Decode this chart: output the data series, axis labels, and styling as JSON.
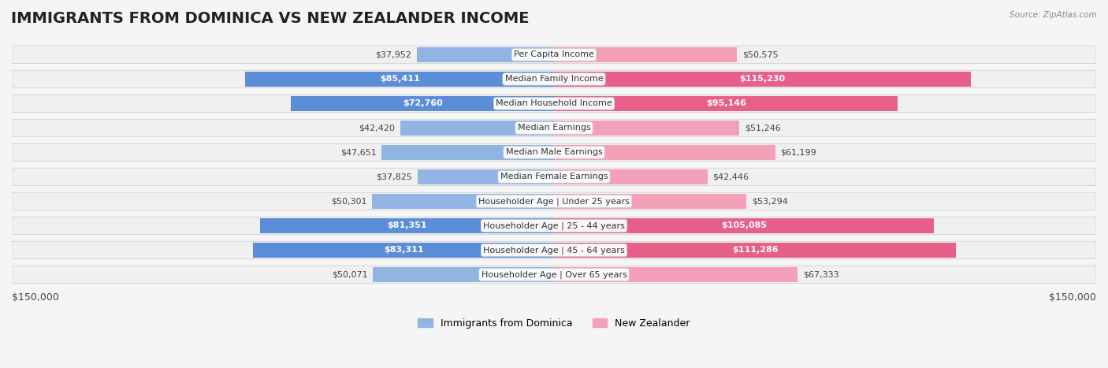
{
  "title": "IMMIGRANTS FROM DOMINICA VS NEW ZEALANDER INCOME",
  "source": "Source: ZipAtlas.com",
  "categories": [
    "Per Capita Income",
    "Median Family Income",
    "Median Household Income",
    "Median Earnings",
    "Median Male Earnings",
    "Median Female Earnings",
    "Householder Age | Under 25 years",
    "Householder Age | 25 - 44 years",
    "Householder Age | 45 - 64 years",
    "Householder Age | Over 65 years"
  ],
  "dominica_values": [
    37952,
    85411,
    72760,
    42420,
    47651,
    37825,
    50301,
    81351,
    83311,
    50071
  ],
  "nz_values": [
    50575,
    115230,
    95146,
    51246,
    61199,
    42446,
    53294,
    105085,
    111286,
    67333
  ],
  "dominica_color": "#92b4e3",
  "dominica_color_dark": "#5b8dd9",
  "nz_color": "#f4a0b8",
  "nz_color_dark": "#e8608a",
  "max_value": 150000,
  "bg_color": "#f5f5f5",
  "row_bg_color": "#ffffff",
  "label_bg_color": "#ffffff",
  "title_fontsize": 14,
  "tick_fontsize": 9,
  "value_fontsize": 8,
  "category_fontsize": 8
}
